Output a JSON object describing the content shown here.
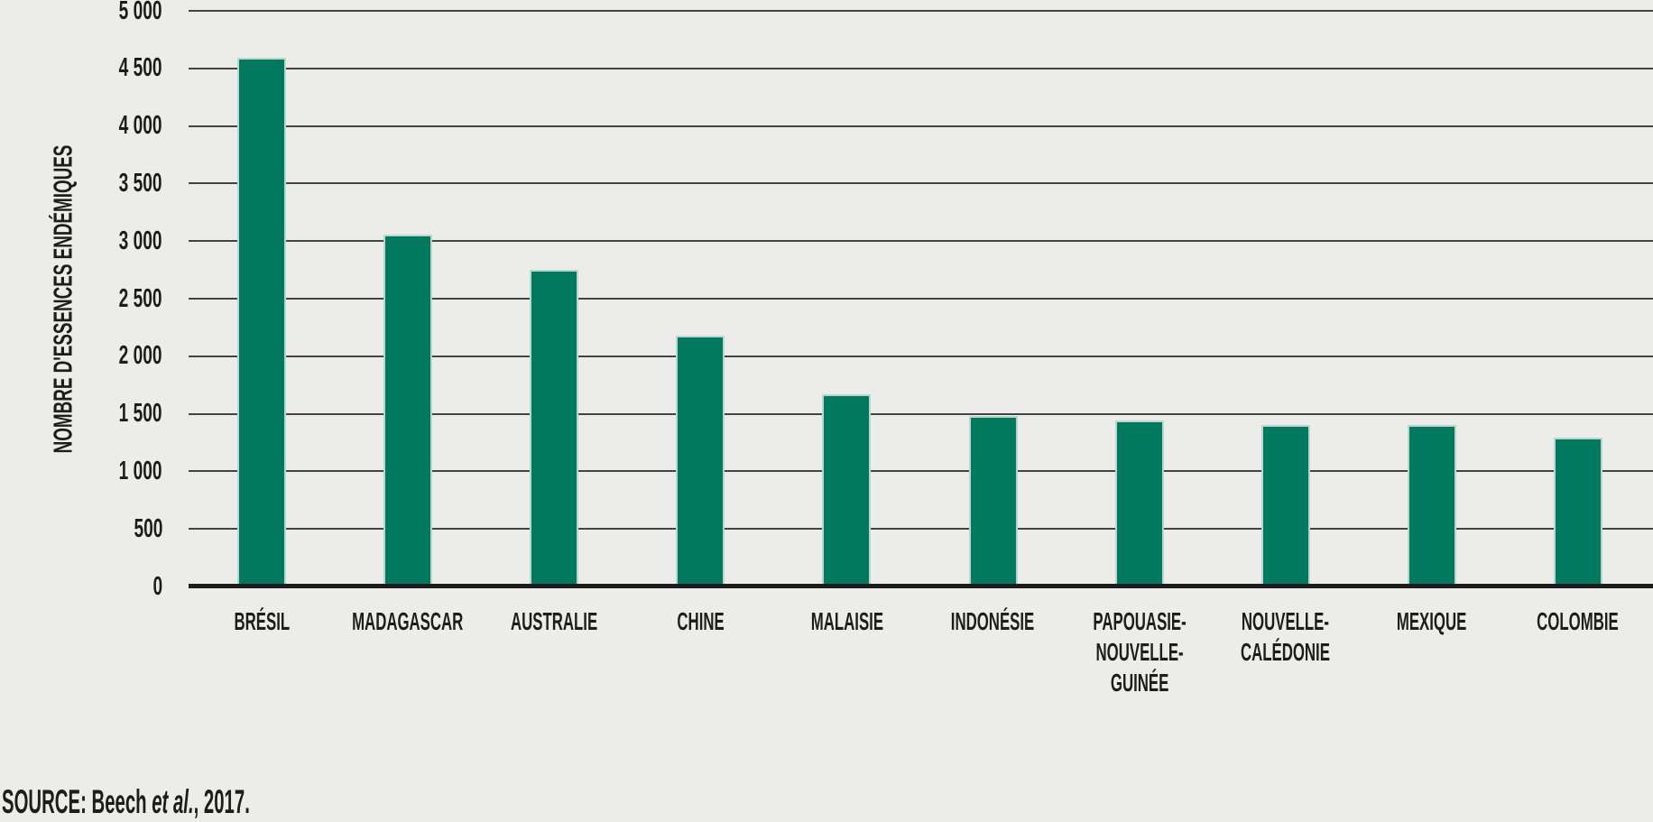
{
  "page": {
    "background": "#ECECEA",
    "text_color": "#1D1D1B"
  },
  "chart_data": {
    "type": "bar",
    "title": "",
    "xlabel": "",
    "ylabel": "NOMBRE D'ESSENCES ENDÉMIQUES",
    "categories": [
      "BRÉSIL",
      "MADAGASCAR",
      "AUSTRALIE",
      "CHINE",
      "MALAISIE",
      "INDONÉSIE",
      "PAPOUASIE-NOUVELLE-GUINÉE",
      "NOUVELLE-CALÉDONIE",
      "MEXIQUE",
      "COLOMBIE"
    ],
    "category_label_lines": [
      [
        "BRÉSIL"
      ],
      [
        "MADAGASCAR"
      ],
      [
        "AUSTRALIE"
      ],
      [
        "CHINE"
      ],
      [
        "MALAISIE"
      ],
      [
        "INDONÉSIE"
      ],
      [
        "PAPOUASIE-",
        "NOUVELLE-",
        "GUINÉE"
      ],
      [
        "NOUVELLE-",
        "CALÉDONIE"
      ],
      [
        "MEXIQUE"
      ],
      [
        "COLOMBIE"
      ]
    ],
    "values": [
      4590,
      3060,
      2750,
      2180,
      1670,
      1480,
      1440,
      1400,
      1400,
      1290
    ],
    "ylim": [
      0,
      5000
    ],
    "ytick_step": 500,
    "yticks": [
      {
        "value": 0,
        "label": "0"
      },
      {
        "value": 500,
        "label": "500"
      },
      {
        "value": 1000,
        "label": "1 000"
      },
      {
        "value": 1500,
        "label": "1 500"
      },
      {
        "value": 2000,
        "label": "2 000"
      },
      {
        "value": 2500,
        "label": "2 500"
      },
      {
        "value": 3000,
        "label": "3 000"
      },
      {
        "value": 3500,
        "label": "3 500"
      },
      {
        "value": 4000,
        "label": "4 000"
      },
      {
        "value": 4500,
        "label": "4 500"
      },
      {
        "value": 5000,
        "label": "5 000"
      }
    ],
    "grid": true,
    "legend": "none",
    "colors": {
      "bar": "#00795E",
      "bar_edge": "#BDD6CC",
      "grid": "#434341",
      "axis": "#1D1D1B"
    }
  },
  "source": {
    "prefix": "SOURCE: Beech ",
    "italic": "et al.",
    "suffix": ", 2017."
  }
}
